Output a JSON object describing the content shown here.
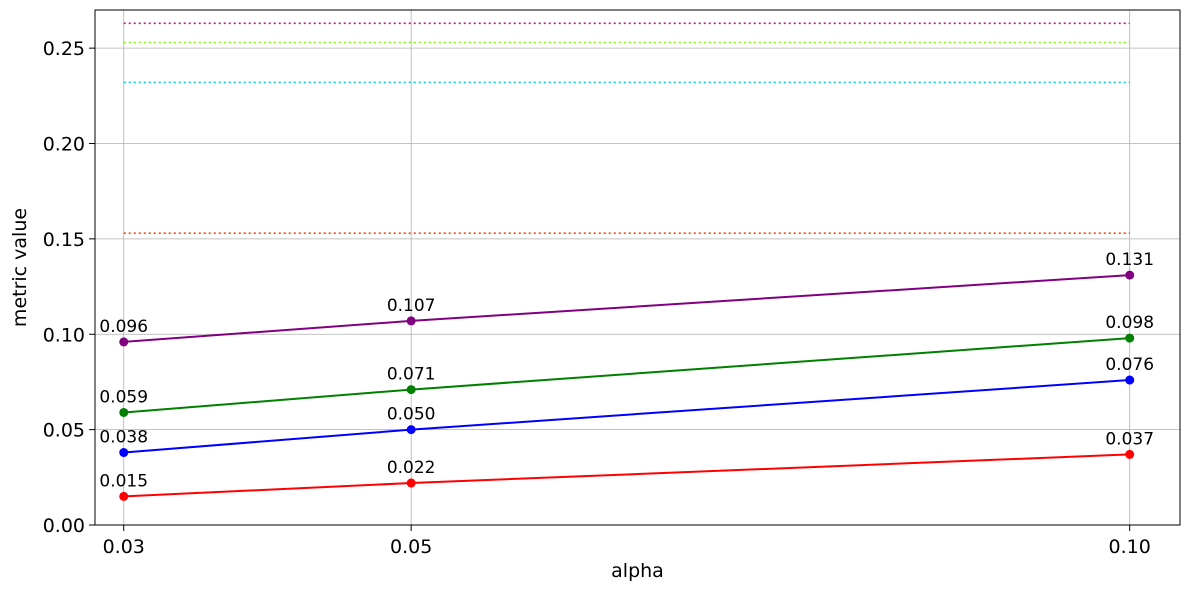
{
  "chart_data": {
    "type": "line",
    "title": "",
    "xlabel": "alpha",
    "ylabel": "metric value",
    "x": [
      0.03,
      0.05,
      0.1
    ],
    "x_tick_labels": [
      "0.03",
      "0.05",
      "0.10"
    ],
    "y_ticks": [
      0.0,
      0.05,
      0.1,
      0.15,
      0.2,
      0.25
    ],
    "y_tick_labels": [
      "0.00",
      "0.05",
      "0.10",
      "0.15",
      "0.20",
      "0.25"
    ],
    "xlim": [
      0.028,
      0.1035
    ],
    "ylim": [
      0.0,
      0.27
    ],
    "grid": true,
    "series": [
      {
        "color": "#ff0000",
        "values": [
          0.015,
          0.022,
          0.037
        ],
        "labels": [
          "0.015",
          "0.022",
          "0.037"
        ]
      },
      {
        "color": "#0000ff",
        "values": [
          0.038,
          0.05,
          0.076
        ],
        "labels": [
          "0.038",
          "0.050",
          "0.076"
        ]
      },
      {
        "color": "#008000",
        "values": [
          0.059,
          0.071,
          0.098
        ],
        "labels": [
          "0.059",
          "0.071",
          "0.098"
        ]
      },
      {
        "color": "#800080",
        "values": [
          0.096,
          0.107,
          0.131
        ],
        "labels": [
          "0.096",
          "0.107",
          "0.131"
        ]
      }
    ],
    "reference_lines": [
      {
        "y": 0.153,
        "color": "#ff4500",
        "style": "dotted"
      },
      {
        "y": 0.232,
        "color": "#00ced1",
        "style": "dotted"
      },
      {
        "y": 0.253,
        "color": "#7fff00",
        "style": "dotted"
      },
      {
        "y": 0.263,
        "color": "#c71585",
        "style": "dotted"
      }
    ]
  }
}
